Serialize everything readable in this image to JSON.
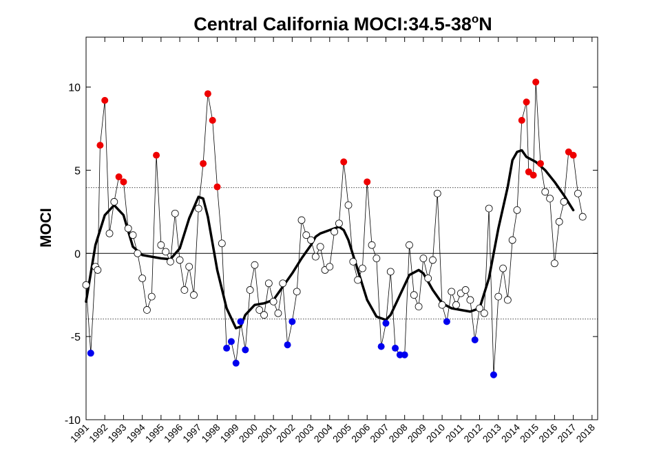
{
  "chart_data": {
    "type": "scatter",
    "title": "Central California MOCI:34.5-38",
    "title_sup": "o",
    "title_suffix": "N",
    "ylabel": "MOCI",
    "xlabel": "",
    "xlim": [
      1991,
      2018.3
    ],
    "ylim": [
      -10,
      13
    ],
    "yticks": [
      -10,
      -5,
      0,
      5,
      10
    ],
    "xticks": [
      1991,
      1992,
      1993,
      1994,
      1995,
      1996,
      1997,
      1998,
      1999,
      2000,
      2001,
      2002,
      2003,
      2004,
      2005,
      2006,
      2007,
      2008,
      2009,
      2010,
      2011,
      2012,
      2013,
      2014,
      2015,
      2016,
      2017,
      2018
    ],
    "threshold_lines": [
      3.95,
      -3.95
    ],
    "zero_line": 0,
    "colors": {
      "positive": "#ee0000",
      "negative": "#0000ee",
      "neutral": "#000000",
      "smooth": "#000000"
    },
    "series": [
      {
        "values": [
          [
            1991.0,
            -1.9
          ],
          [
            1991.25,
            -6.0
          ],
          [
            1991.5,
            -0.8
          ],
          [
            1991.62,
            -1.0
          ],
          [
            1991.75,
            6.5
          ],
          [
            1992.0,
            9.2
          ],
          [
            1992.25,
            1.2
          ],
          [
            1992.5,
            3.1
          ],
          [
            1992.75,
            4.6
          ],
          [
            1993.0,
            4.3
          ],
          [
            1993.25,
            1.5
          ],
          [
            1993.5,
            1.1
          ],
          [
            1993.75,
            0.0
          ],
          [
            1994.0,
            -1.5
          ],
          [
            1994.25,
            -3.4
          ],
          [
            1994.5,
            -2.6
          ],
          [
            1994.75,
            5.9
          ],
          [
            1995.0,
            0.5
          ],
          [
            1995.25,
            0.1
          ],
          [
            1995.5,
            -0.5
          ],
          [
            1995.75,
            2.4
          ],
          [
            1996.0,
            -0.4
          ],
          [
            1996.25,
            -2.2
          ],
          [
            1996.5,
            -0.8
          ],
          [
            1996.75,
            -2.5
          ],
          [
            1997.0,
            2.7
          ],
          [
            1997.25,
            5.4
          ],
          [
            1997.5,
            9.6
          ],
          [
            1997.75,
            8.0
          ],
          [
            1998.0,
            4.0
          ],
          [
            1998.25,
            0.6
          ],
          [
            1998.5,
            -5.7
          ],
          [
            1998.75,
            -5.3
          ],
          [
            1999.0,
            -6.6
          ],
          [
            1999.25,
            -4.1
          ],
          [
            1999.5,
            -5.8
          ],
          [
            1999.75,
            -2.2
          ],
          [
            2000.0,
            -0.7
          ],
          [
            2000.25,
            -3.4
          ],
          [
            2000.5,
            -3.7
          ],
          [
            2000.75,
            -1.8
          ],
          [
            2001.0,
            -2.9
          ],
          [
            2001.25,
            -3.6
          ],
          [
            2001.5,
            -1.8
          ],
          [
            2001.75,
            -5.5
          ],
          [
            2002.0,
            -4.1
          ],
          [
            2002.25,
            -2.3
          ],
          [
            2002.5,
            2.0
          ],
          [
            2002.75,
            1.1
          ],
          [
            2003.0,
            0.8
          ],
          [
            2003.25,
            -0.2
          ],
          [
            2003.5,
            0.4
          ],
          [
            2003.75,
            -1.0
          ],
          [
            2004.0,
            -0.8
          ],
          [
            2004.25,
            1.3
          ],
          [
            2004.5,
            1.8
          ],
          [
            2004.75,
            5.5
          ],
          [
            2005.0,
            2.9
          ],
          [
            2005.25,
            -0.5
          ],
          [
            2005.5,
            -1.6
          ],
          [
            2005.75,
            -0.9
          ],
          [
            2006.0,
            4.3
          ],
          [
            2006.25,
            0.5
          ],
          [
            2006.5,
            -0.3
          ],
          [
            2006.75,
            -5.6
          ],
          [
            2007.0,
            -4.2
          ],
          [
            2007.25,
            -1.1
          ],
          [
            2007.5,
            -5.7
          ],
          [
            2007.75,
            -6.1
          ],
          [
            2008.0,
            -6.1
          ],
          [
            2008.25,
            0.5
          ],
          [
            2008.5,
            -2.5
          ],
          [
            2008.75,
            -3.2
          ],
          [
            2009.0,
            -0.3
          ],
          [
            2009.25,
            -1.5
          ],
          [
            2009.5,
            -0.4
          ],
          [
            2009.75,
            3.6
          ],
          [
            2010.0,
            -3.1
          ],
          [
            2010.25,
            -4.1
          ],
          [
            2010.5,
            -2.3
          ],
          [
            2010.75,
            -3.1
          ],
          [
            2011.0,
            -2.4
          ],
          [
            2011.25,
            -2.2
          ],
          [
            2011.5,
            -2.8
          ],
          [
            2011.75,
            -5.2
          ],
          [
            2012.0,
            -3.3
          ],
          [
            2012.25,
            -3.6
          ],
          [
            2012.5,
            2.7
          ],
          [
            2012.75,
            -7.3
          ],
          [
            2013.0,
            -2.6
          ],
          [
            2013.25,
            -0.9
          ],
          [
            2013.5,
            -2.8
          ],
          [
            2013.75,
            0.8
          ],
          [
            2014.0,
            2.6
          ],
          [
            2014.25,
            8.0
          ],
          [
            2014.5,
            9.1
          ],
          [
            2014.62,
            4.9
          ],
          [
            2014.87,
            4.7
          ],
          [
            2015.0,
            10.3
          ],
          [
            2015.25,
            5.4
          ],
          [
            2015.5,
            3.7
          ],
          [
            2015.75,
            3.3
          ],
          [
            2016.0,
            -0.6
          ],
          [
            2016.25,
            1.9
          ],
          [
            2016.5,
            3.1
          ],
          [
            2016.75,
            6.1
          ],
          [
            2017.0,
            5.9
          ],
          [
            2017.25,
            3.6
          ],
          [
            2017.5,
            2.2
          ]
        ]
      },
      {
        "type": "line",
        "values": [
          [
            1991.0,
            -2.9
          ],
          [
            1991.5,
            0.5
          ],
          [
            1992.0,
            2.3
          ],
          [
            1992.5,
            2.9
          ],
          [
            1993.0,
            2.3
          ],
          [
            1993.5,
            0.4
          ],
          [
            1994.0,
            -0.1
          ],
          [
            1994.5,
            -0.2
          ],
          [
            1995.0,
            -0.3
          ],
          [
            1995.5,
            -0.35
          ],
          [
            1996.0,
            0.3
          ],
          [
            1996.5,
            2.1
          ],
          [
            1997.0,
            3.4
          ],
          [
            1997.25,
            3.3
          ],
          [
            1997.5,
            2.2
          ],
          [
            1998.0,
            -1.0
          ],
          [
            1998.5,
            -3.3
          ],
          [
            1999.0,
            -4.5
          ],
          [
            1999.25,
            -4.4
          ],
          [
            1999.5,
            -3.7
          ],
          [
            2000.0,
            -3.1
          ],
          [
            2000.5,
            -3.0
          ],
          [
            2001.0,
            -2.8
          ],
          [
            2001.5,
            -2.0
          ],
          [
            2002.0,
            -1.2
          ],
          [
            2002.5,
            -0.3
          ],
          [
            2003.0,
            0.5
          ],
          [
            2003.25,
            1.0
          ],
          [
            2003.5,
            1.2
          ],
          [
            2004.0,
            1.4
          ],
          [
            2004.5,
            1.6
          ],
          [
            2004.75,
            1.4
          ],
          [
            2005.0,
            0.8
          ],
          [
            2005.5,
            -1.0
          ],
          [
            2006.0,
            -2.8
          ],
          [
            2006.5,
            -3.8
          ],
          [
            2007.0,
            -4.0
          ],
          [
            2007.25,
            -3.7
          ],
          [
            2007.75,
            -2.5
          ],
          [
            2008.25,
            -1.3
          ],
          [
            2008.75,
            -1.0
          ],
          [
            2009.0,
            -1.2
          ],
          [
            2009.5,
            -2.2
          ],
          [
            2010.0,
            -3.0
          ],
          [
            2010.5,
            -3.3
          ],
          [
            2011.0,
            -3.4
          ],
          [
            2011.5,
            -3.5
          ],
          [
            2012.0,
            -3.3
          ],
          [
            2012.5,
            -1.5
          ],
          [
            2013.0,
            1.5
          ],
          [
            2013.5,
            4.0
          ],
          [
            2013.75,
            5.6
          ],
          [
            2014.0,
            6.1
          ],
          [
            2014.25,
            6.2
          ],
          [
            2014.5,
            5.8
          ],
          [
            2015.0,
            5.5
          ],
          [
            2015.5,
            5.0
          ],
          [
            2016.0,
            4.3
          ],
          [
            2016.5,
            3.5
          ],
          [
            2017.0,
            2.6
          ]
        ]
      }
    ]
  }
}
